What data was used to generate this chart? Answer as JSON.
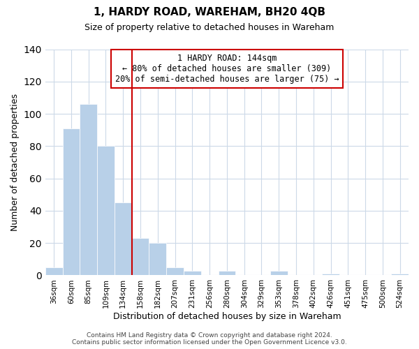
{
  "title": "1, HARDY ROAD, WAREHAM, BH20 4QB",
  "subtitle": "Size of property relative to detached houses in Wareham",
  "xlabel": "Distribution of detached houses by size in Wareham",
  "ylabel": "Number of detached properties",
  "bar_labels": [
    "36sqm",
    "60sqm",
    "85sqm",
    "109sqm",
    "134sqm",
    "158sqm",
    "182sqm",
    "207sqm",
    "231sqm",
    "256sqm",
    "280sqm",
    "304sqm",
    "329sqm",
    "353sqm",
    "378sqm",
    "402sqm",
    "426sqm",
    "451sqm",
    "475sqm",
    "500sqm",
    "524sqm"
  ],
  "bar_values": [
    5,
    91,
    106,
    80,
    45,
    23,
    20,
    5,
    3,
    0,
    3,
    0,
    0,
    3,
    0,
    0,
    1,
    0,
    0,
    0,
    1
  ],
  "bar_color": "#b8d0e8",
  "vline_x": 4.5,
  "vline_color": "#cc0000",
  "annotation_line1": "1 HARDY ROAD: 144sqm",
  "annotation_line2": "← 80% of detached houses are smaller (309)",
  "annotation_line3": "20% of semi-detached houses are larger (75) →",
  "annotation_box_edge": "#cc0000",
  "ylim": [
    0,
    140
  ],
  "yticks": [
    0,
    20,
    40,
    60,
    80,
    100,
    120,
    140
  ],
  "grid_color": "#ccd9e8",
  "background_color": "#ffffff",
  "footer_line1": "Contains HM Land Registry data © Crown copyright and database right 2024.",
  "footer_line2": "Contains public sector information licensed under the Open Government Licence v3.0."
}
